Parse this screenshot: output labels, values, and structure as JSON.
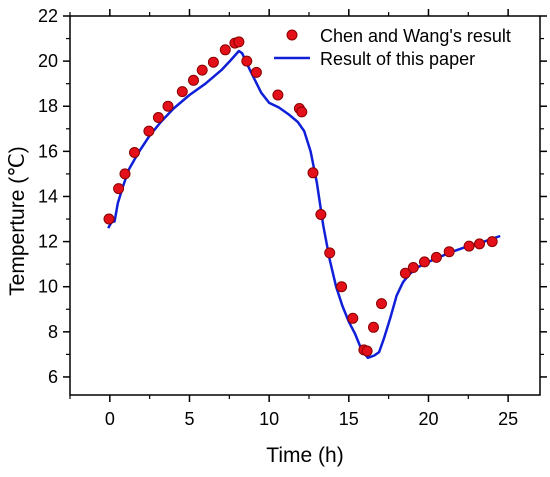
{
  "chart_data": {
    "type": "scatter+line",
    "title": "",
    "xlabel": "Time (h)",
    "ylabel": "Temperture (℃)",
    "xlim": [
      -2.5,
      27
    ],
    "ylim": [
      5.2,
      22
    ],
    "xticks": [
      0,
      5,
      10,
      15,
      20,
      25
    ],
    "yticks": [
      6,
      8,
      10,
      12,
      14,
      16,
      18,
      20,
      22
    ],
    "legend_position": "top-right",
    "series": [
      {
        "name": "Chen and Wang's result",
        "kind": "scatter",
        "color": "#e3101a",
        "points": [
          [
            -0.05,
            13.0
          ],
          [
            0.55,
            14.35
          ],
          [
            0.95,
            15.0
          ],
          [
            1.55,
            15.95
          ],
          [
            2.45,
            16.9
          ],
          [
            3.05,
            17.5
          ],
          [
            3.65,
            18.0
          ],
          [
            4.55,
            18.65
          ],
          [
            5.25,
            19.15
          ],
          [
            5.8,
            19.6
          ],
          [
            6.5,
            19.95
          ],
          [
            7.25,
            20.5
          ],
          [
            7.85,
            20.8
          ],
          [
            8.1,
            20.85
          ],
          [
            8.6,
            20.0
          ],
          [
            9.2,
            19.5
          ],
          [
            10.55,
            18.5
          ],
          [
            11.9,
            17.9
          ],
          [
            12.05,
            17.75
          ],
          [
            12.75,
            15.05
          ],
          [
            13.25,
            13.2
          ],
          [
            13.8,
            11.5
          ],
          [
            14.55,
            10.0
          ],
          [
            15.25,
            8.6
          ],
          [
            15.95,
            7.2
          ],
          [
            16.15,
            7.15
          ],
          [
            16.55,
            8.2
          ],
          [
            17.05,
            9.25
          ],
          [
            18.55,
            10.6
          ],
          [
            19.05,
            10.85
          ],
          [
            19.75,
            11.1
          ],
          [
            20.5,
            11.3
          ],
          [
            21.3,
            11.55
          ],
          [
            22.55,
            11.8
          ],
          [
            23.2,
            11.9
          ],
          [
            24.0,
            12.0
          ]
        ]
      },
      {
        "name": "Result of this paper",
        "kind": "line",
        "color": "#1020d8",
        "points": [
          [
            -0.1,
            12.6
          ],
          [
            0.1,
            12.85
          ],
          [
            0.3,
            12.9
          ],
          [
            0.5,
            13.7
          ],
          [
            0.8,
            14.4
          ],
          [
            1.2,
            15.2
          ],
          [
            1.8,
            15.95
          ],
          [
            2.5,
            16.7
          ],
          [
            3.2,
            17.3
          ],
          [
            4.0,
            17.9
          ],
          [
            5.0,
            18.5
          ],
          [
            6.0,
            19.0
          ],
          [
            7.0,
            19.6
          ],
          [
            7.6,
            20.05
          ],
          [
            8.1,
            20.45
          ],
          [
            8.3,
            20.35
          ],
          [
            8.8,
            19.6
          ],
          [
            9.5,
            18.6
          ],
          [
            10.0,
            18.15
          ],
          [
            10.6,
            17.95
          ],
          [
            11.2,
            17.65
          ],
          [
            11.8,
            17.3
          ],
          [
            12.2,
            16.9
          ],
          [
            12.6,
            16.0
          ],
          [
            13.0,
            14.6
          ],
          [
            13.4,
            12.7
          ],
          [
            13.8,
            11.2
          ],
          [
            14.2,
            10.0
          ],
          [
            14.6,
            9.15
          ],
          [
            15.0,
            8.45
          ],
          [
            15.4,
            7.9
          ],
          [
            15.8,
            7.2
          ],
          [
            16.2,
            6.85
          ],
          [
            16.6,
            6.95
          ],
          [
            16.9,
            7.1
          ],
          [
            17.2,
            7.7
          ],
          [
            17.6,
            8.6
          ],
          [
            18.0,
            9.6
          ],
          [
            18.4,
            10.2
          ],
          [
            18.8,
            10.55
          ],
          [
            19.3,
            10.85
          ],
          [
            20.0,
            11.1
          ],
          [
            20.8,
            11.35
          ],
          [
            21.5,
            11.55
          ],
          [
            22.5,
            11.8
          ],
          [
            23.5,
            12.0
          ],
          [
            24.5,
            12.25
          ]
        ]
      }
    ]
  }
}
